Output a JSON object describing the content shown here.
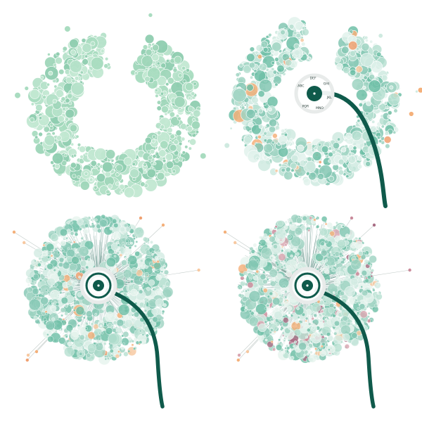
{
  "figure": {
    "panels": [
      {
        "id": "arc-only",
        "variant": "arc",
        "dial": false,
        "stem": false,
        "spokes": false,
        "colors": [
          "#a9dcc0",
          "#9fd6b9",
          "#b5e2c9",
          "#8fceb0",
          "#c2e8d2"
        ]
      },
      {
        "id": "arc-with-dial",
        "variant": "arc",
        "dial": true,
        "stem": true,
        "spokes": false,
        "colors": [
          "#cfeae0",
          "#b8e0d2",
          "#9fd3c2",
          "#84c7b3",
          "#e2f2ec",
          "#6fbfa7"
        ],
        "accents": [
          "#f4b07a",
          "#f7c8a0",
          "#f0a070"
        ]
      },
      {
        "id": "dandelion",
        "variant": "full",
        "dial": true,
        "stem": true,
        "spokes": true,
        "colors": [
          "#d3ece3",
          "#b8e0d2",
          "#9fd3c2",
          "#84c7b3",
          "#e6f4ee",
          "#6fbfa7"
        ],
        "accents": [
          "#f4b07a",
          "#f7c8a0",
          "#f0a070"
        ]
      },
      {
        "id": "dandelion-mixed",
        "variant": "full",
        "dial": true,
        "stem": true,
        "spokes": true,
        "colors": [
          "#d3ece3",
          "#b8e0d2",
          "#9fd3c2",
          "#84c7b3",
          "#e6f4ee",
          "#6fbfa7"
        ],
        "accents": [
          "#f4b07a",
          "#f7c8a0",
          "#c98a9a",
          "#a86d84",
          "#d9a6b1"
        ]
      }
    ],
    "dial_labels": [
      "ABC",
      "DEF",
      "GHI",
      "JKL",
      "MNO",
      "PQR"
    ],
    "palette": {
      "dark_teal": "#0f5a4b",
      "dial_ring": "#e8ebea",
      "background": "#ffffff"
    }
  }
}
